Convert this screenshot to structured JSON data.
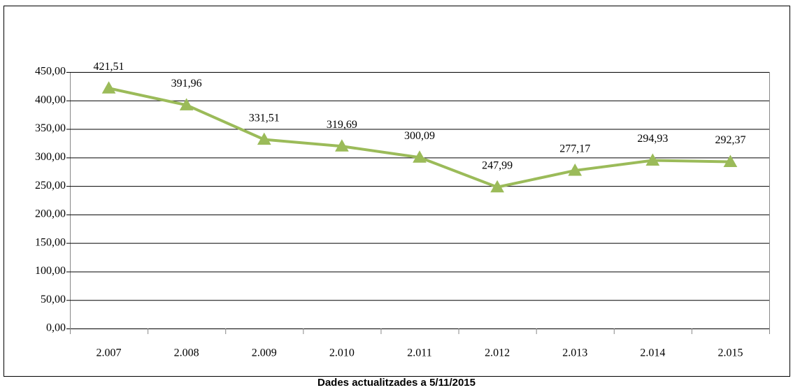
{
  "chart_data": {
    "type": "line",
    "categories": [
      "2.007",
      "2.008",
      "2.009",
      "2.010",
      "2.011",
      "2.012",
      "2.013",
      "2.014",
      "2.015"
    ],
    "values": [
      421.51,
      391.96,
      331.51,
      319.69,
      300.09,
      247.99,
      277.17,
      294.93,
      292.37
    ],
    "value_labels": [
      "421,51",
      "391,96",
      "331,51",
      "319,69",
      "300,09",
      "247,99",
      "277,17",
      "294,93",
      "292,37"
    ],
    "color": "#9bbb59",
    "marker": "triangle",
    "ylim": [
      0,
      450
    ],
    "yticks": [
      {
        "value": 0,
        "label": "0,00"
      },
      {
        "value": 50,
        "label": "50,00"
      },
      {
        "value": 100,
        "label": "100,00"
      },
      {
        "value": 150,
        "label": "150,00"
      },
      {
        "value": 200,
        "label": "200,00"
      },
      {
        "value": 250,
        "label": "250,00"
      },
      {
        "value": 300,
        "label": "300,00"
      },
      {
        "value": 350,
        "label": "350,00"
      },
      {
        "value": 400,
        "label": "400,00"
      },
      {
        "value": 450,
        "label": "450,00"
      }
    ],
    "grid": true,
    "caption": "Dades actualitzades a 5/11/2015"
  }
}
